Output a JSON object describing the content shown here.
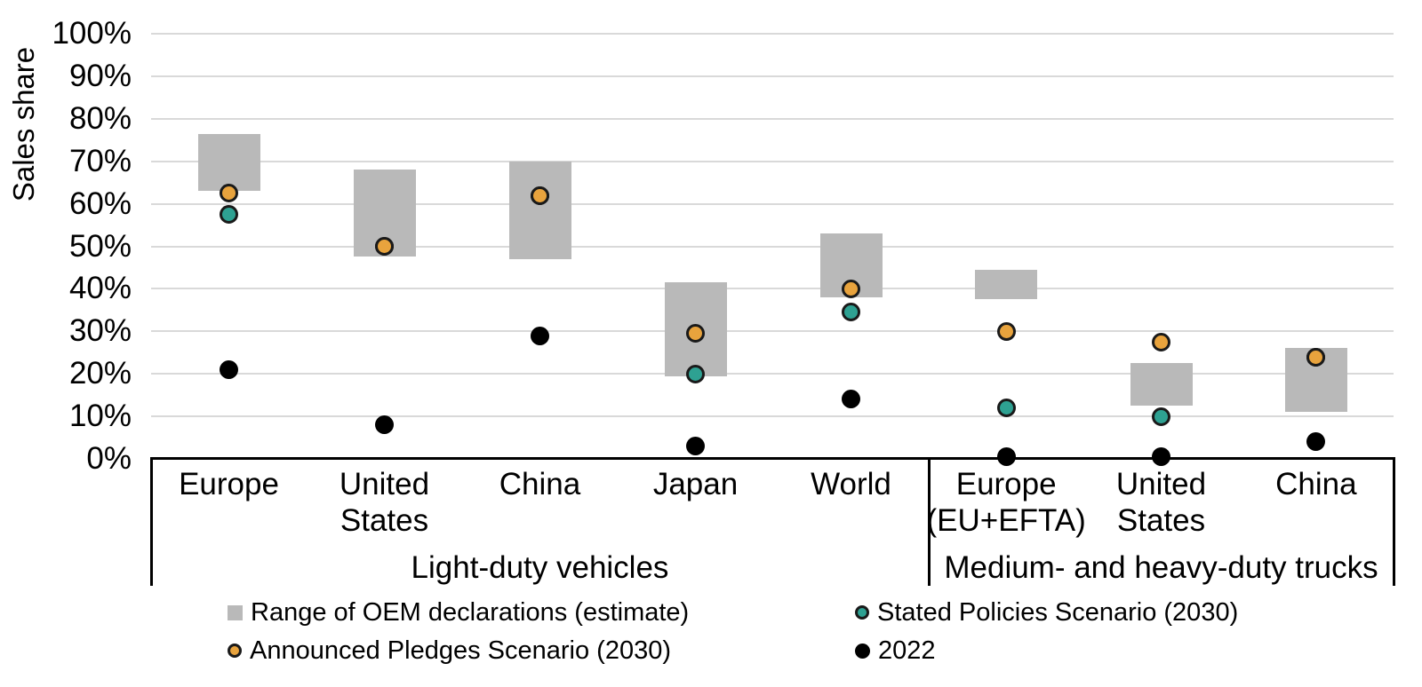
{
  "chart_data": {
    "type": "bar",
    "subtype": "floating-range-bars-with-scatter-markers",
    "ylabel": "Sales share",
    "ylim": [
      0,
      100
    ],
    "ytick_step": 10,
    "ytick_labels": [
      "0%",
      "10%",
      "20%",
      "30%",
      "40%",
      "50%",
      "60%",
      "70%",
      "80%",
      "90%",
      "100%"
    ],
    "grid": true,
    "legend_position": "bottom",
    "colors": {
      "oem_range": "#B9B9B9",
      "steps_2030": "#2EA192",
      "aps_2030": "#E8A33D",
      "sales_2022": "#000000",
      "marker_outline": "#1A1A1A",
      "gridline": "#D9D9D9",
      "axis": "#000000"
    },
    "groups": [
      {
        "label": "Light-duty vehicles",
        "categories": [
          {
            "labels": [
              "Europe"
            ],
            "oem_range": [
              63,
              76.5
            ],
            "steps_2030": 57.5,
            "aps_2030": 62.5,
            "sales_2022": 21
          },
          {
            "labels": [
              "United",
              "States"
            ],
            "oem_range": [
              47.5,
              68
            ],
            "steps_2030": 50,
            "aps_2030": 50,
            "sales_2022": 8
          },
          {
            "labels": [
              "China"
            ],
            "oem_range": [
              47,
              70
            ],
            "steps_2030": 62,
            "aps_2030": 62,
            "sales_2022": 29
          },
          {
            "labels": [
              "Japan"
            ],
            "oem_range": [
              19.5,
              41.5
            ],
            "steps_2030": 20,
            "aps_2030": 29.5,
            "sales_2022": 3
          },
          {
            "labels": [
              "World"
            ],
            "oem_range": [
              38,
              53
            ],
            "steps_2030": 34.5,
            "aps_2030": 40,
            "sales_2022": 14
          }
        ]
      },
      {
        "label": "Medium- and heavy-duty trucks",
        "categories": [
          {
            "labels": [
              "Europe",
              "(EU+EFTA)"
            ],
            "oem_range": [
              37.5,
              44.5
            ],
            "steps_2030": 12,
            "aps_2030": 30,
            "sales_2022": 0.5
          },
          {
            "labels": [
              "United",
              "States"
            ],
            "oem_range": [
              12.5,
              22.5
            ],
            "steps_2030": 10,
            "aps_2030": 27.5,
            "sales_2022": 0.5
          },
          {
            "labels": [
              "China"
            ],
            "oem_range": [
              11,
              26
            ],
            "steps_2030": 24,
            "aps_2030": 24,
            "sales_2022": 4
          }
        ]
      }
    ],
    "legend": [
      {
        "marker": "square",
        "series": "oem_range",
        "label": "Range of OEM declarations (estimate)"
      },
      {
        "marker": "ring",
        "series": "steps_2030",
        "label": "Stated Policies Scenario (2030)"
      },
      {
        "marker": "ring",
        "series": "aps_2030",
        "label": "Announced Pledges Scenario (2030)"
      },
      {
        "marker": "solid",
        "series": "sales_2022",
        "label": "2022"
      }
    ]
  }
}
